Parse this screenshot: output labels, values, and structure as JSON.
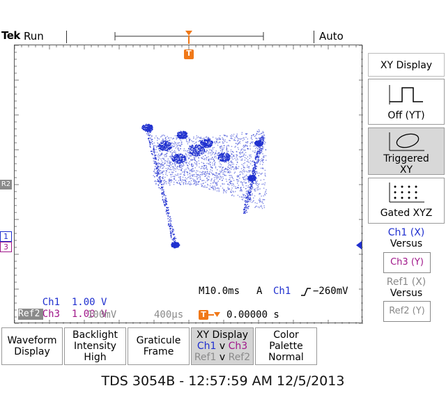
{
  "status_bar": {
    "brand": "Tek",
    "acq_state": "Run",
    "trigger_mode": "Auto",
    "trigger_marker": "T"
  },
  "side_menu": {
    "title": "XY Display",
    "off_yt": "Off (YT)",
    "triggered_xy_line1": "Triggered",
    "triggered_xy_line2": "XY",
    "gated_xyz": "Gated XYZ",
    "ch1_x": "Ch1 (X)",
    "versus1": "Versus",
    "ch3_y": "Ch3 (Y)",
    "ref1_x": "Ref1 (X)",
    "versus2": "Versus",
    "ref2_y": "Ref2 (Y)"
  },
  "markers": {
    "r2": "R2",
    "ch1": "1",
    "ch3": "3"
  },
  "readouts": {
    "ch1_label": "Ch1",
    "ch1_scale": "1.00 V",
    "ch3_label": "Ch3",
    "ch3_scale": "1.00 V",
    "ref2_label": "Ref2",
    "ref2_scale": "100mV",
    "ref2_time": "400μs",
    "timebase": "M10.0ms",
    "trig_source_letter": "A",
    "trig_channel": "Ch1",
    "trig_level": "−260mV",
    "trig_pos_marker": "T",
    "trig_time": "0.00000 s"
  },
  "bottom_menu": {
    "waveform_display": [
      "Waveform",
      "Display"
    ],
    "backlight": [
      "Backlight",
      "Intensity",
      "High"
    ],
    "graticule": [
      "Graticule",
      "Frame"
    ],
    "xy_display_title": "XY Display",
    "xy_ch1": "Ch1",
    "xy_v1": "v",
    "xy_ch3": "Ch3",
    "xy_ref1": "Ref1",
    "xy_v2": "v",
    "xy_ref2": "Ref2",
    "color_palette": [
      "Color",
      "Palette",
      "Normal"
    ]
  },
  "footer": "TDS 3054B - 12:57:59 AM   12/5/2013",
  "colors": {
    "ch1": "#1f2fcf",
    "ch3": "#a0178a",
    "trigger": "#f07818",
    "ref": "#8a8a8a"
  }
}
